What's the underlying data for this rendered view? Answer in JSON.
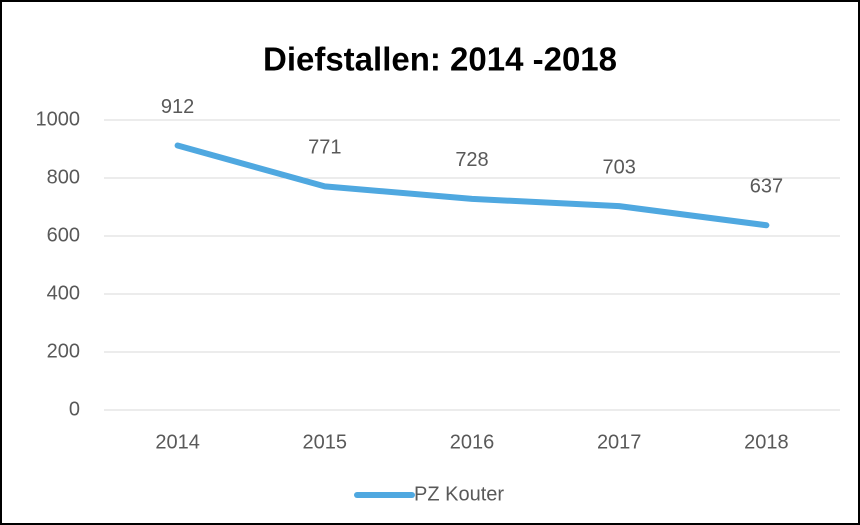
{
  "chart_data": {
    "type": "line",
    "title": "Diefstallen: 2014 -2018",
    "categories": [
      "2014",
      "2015",
      "2016",
      "2017",
      "2018"
    ],
    "series": [
      {
        "name": "PZ Kouter",
        "color": "#4fa8e0",
        "values": [
          912,
          771,
          728,
          703,
          637
        ]
      }
    ],
    "ylim": [
      0,
      1000
    ],
    "yticks": [
      0,
      200,
      400,
      600,
      800,
      1000
    ],
    "grid": true,
    "legend": "bottom"
  }
}
